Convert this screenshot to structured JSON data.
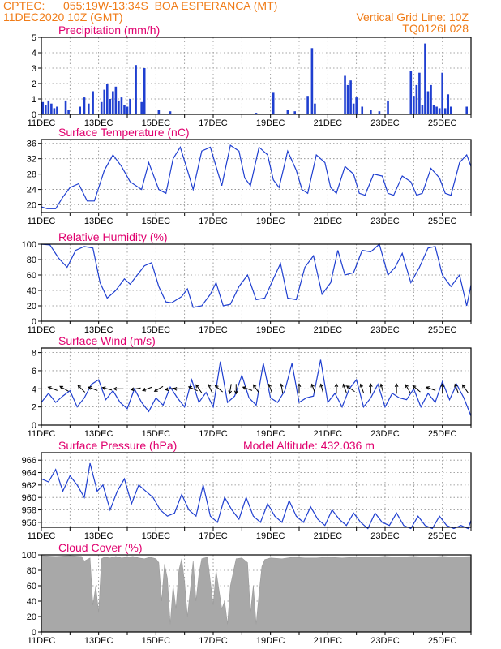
{
  "header": {
    "source": "CPTEC:",
    "location": "055:19W-13:34S  BOA ESPERANCA (MT)",
    "datetime": "11DEC2020 10Z (GMT)",
    "vgrid_label": "Vertical Grid Line: 10Z",
    "code": "TQ0126L028"
  },
  "x_ticks": [
    "11DEC",
    "13DEC",
    "15DEC",
    "17DEC",
    "19DEC",
    "21DEC",
    "23DEC",
    "25DEC"
  ],
  "colors": {
    "title": "#e0006e",
    "header": "#f07c18",
    "series": "#1f3fd0",
    "cloud": "#a8a8a8"
  },
  "chart_data": [
    {
      "id": "precip",
      "type": "bar",
      "title": "Precipitation (mm/h)",
      "xlabel": "",
      "ylabel": "",
      "x_range": [
        0,
        15
      ],
      "ylim": [
        0,
        5
      ],
      "yticks": [
        0,
        1,
        2,
        3,
        4,
        5
      ],
      "x": [
        0.05,
        0.15,
        0.25,
        0.35,
        0.45,
        0.55,
        0.85,
        0.95,
        1.35,
        1.5,
        1.65,
        1.8,
        2.1,
        2.2,
        2.3,
        2.4,
        2.5,
        2.6,
        2.7,
        2.8,
        2.9,
        3.0,
        3.1,
        3.3,
        3.5,
        3.6,
        4.1,
        4.5,
        7.5,
        8.1,
        8.6,
        8.85,
        9.3,
        9.45,
        9.55,
        10.6,
        10.7,
        10.8,
        10.9,
        11.0,
        11.2,
        11.5,
        11.8,
        12.1,
        12.9,
        13.0,
        13.1,
        13.2,
        13.3,
        13.4,
        13.5,
        13.6,
        13.7,
        13.8,
        13.9,
        14.0,
        14.1,
        14.2,
        14.3,
        14.85
      ],
      "values": [
        0.8,
        0.6,
        0.9,
        0.7,
        0.4,
        0.5,
        0.9,
        0.3,
        0.5,
        1.1,
        0.7,
        1.5,
        0.8,
        1.6,
        2.0,
        1.0,
        1.5,
        1.8,
        0.9,
        1.1,
        0.6,
        0.5,
        1.0,
        3.2,
        0.8,
        3.0,
        0.3,
        0.2,
        0.1,
        1.4,
        0.3,
        0.2,
        1.2,
        4.3,
        0.7,
        2.5,
        1.9,
        2.2,
        0.7,
        1.1,
        0.5,
        0.3,
        0.2,
        0.9,
        2.8,
        1.2,
        1.9,
        2.7,
        0.6,
        4.6,
        1.5,
        1.9,
        0.6,
        0.5,
        0.4,
        2.7,
        0.4,
        1.3,
        0.5,
        0.5
      ]
    },
    {
      "id": "temp",
      "type": "line",
      "title": "Surface Temperature (nC)",
      "xlabel": "",
      "ylabel": "",
      "x_range": [
        0,
        15
      ],
      "ylim": [
        18,
        37
      ],
      "yticks": [
        20,
        24,
        28,
        32,
        36
      ],
      "x": [
        0,
        0.2,
        0.5,
        0.75,
        1.0,
        1.3,
        1.6,
        1.85,
        2.2,
        2.5,
        2.8,
        3.1,
        3.5,
        3.75,
        4.1,
        4.35,
        4.6,
        4.85,
        5.1,
        5.3,
        5.6,
        5.9,
        6.1,
        6.3,
        6.6,
        6.9,
        7.1,
        7.3,
        7.6,
        7.9,
        8.1,
        8.3,
        8.6,
        8.9,
        9.1,
        9.3,
        9.6,
        9.9,
        10.1,
        10.3,
        10.6,
        10.9,
        11.1,
        11.3,
        11.6,
        11.9,
        12.1,
        12.3,
        12.6,
        12.9,
        13.1,
        13.3,
        13.6,
        13.9,
        14.1,
        14.3,
        14.6,
        14.85,
        15.0
      ],
      "values": [
        19.5,
        19,
        19,
        22,
        24.5,
        25.5,
        21,
        21,
        29,
        33,
        30,
        26,
        24,
        31,
        24,
        23,
        32,
        35,
        29,
        24,
        34,
        35,
        30,
        25,
        35.5,
        34,
        27,
        25,
        35,
        33,
        26.5,
        24.5,
        34,
        29,
        24,
        23,
        33,
        31,
        24.5,
        23,
        30,
        28,
        23,
        22.5,
        28,
        27.5,
        23,
        22.5,
        27.5,
        26,
        22.5,
        23,
        29.5,
        27,
        23,
        22.5,
        31,
        33,
        30
      ]
    },
    {
      "id": "rh",
      "type": "line",
      "title": "Relative Humidity (%)",
      "xlabel": "",
      "ylabel": "",
      "x_range": [
        0,
        15
      ],
      "ylim": [
        0,
        100
      ],
      "yticks": [
        0,
        20,
        40,
        60,
        80,
        100
      ],
      "x": [
        0,
        0.3,
        0.6,
        0.9,
        1.2,
        1.5,
        1.8,
        2.05,
        2.3,
        2.6,
        2.9,
        3.1,
        3.35,
        3.6,
        3.85,
        4.1,
        4.35,
        4.55,
        4.9,
        5.1,
        5.3,
        5.6,
        5.9,
        6.1,
        6.35,
        6.6,
        6.9,
        7.2,
        7.5,
        7.8,
        8.1,
        8.35,
        8.6,
        8.9,
        9.2,
        9.5,
        9.8,
        10.1,
        10.35,
        10.6,
        10.9,
        11.2,
        11.5,
        11.8,
        12.1,
        12.35,
        12.6,
        12.9,
        13.2,
        13.5,
        13.75,
        14.0,
        14.3,
        14.6,
        14.85,
        15.0
      ],
      "values": [
        100,
        99,
        82,
        70,
        92,
        97,
        95,
        50,
        30,
        40,
        55,
        48,
        60,
        72,
        76,
        45,
        25,
        24,
        32,
        42,
        18,
        20,
        35,
        50,
        20,
        22,
        45,
        60,
        28,
        30,
        55,
        75,
        30,
        28,
        70,
        85,
        35,
        50,
        92,
        60,
        63,
        92,
        90,
        100,
        60,
        70,
        88,
        50,
        70,
        95,
        97,
        60,
        45,
        60,
        20,
        47
      ]
    },
    {
      "id": "wind",
      "type": "line",
      "title": "Surface Wind (m/s)",
      "xlabel": "",
      "ylabel": "",
      "x_range": [
        0,
        15
      ],
      "ylim": [
        0,
        8.5
      ],
      "yticks": [
        0,
        2,
        4,
        6,
        8
      ],
      "x": [
        0,
        0.25,
        0.5,
        0.75,
        1.0,
        1.25,
        1.5,
        1.75,
        2.0,
        2.25,
        2.5,
        2.75,
        3.0,
        3.25,
        3.5,
        3.75,
        4.0,
        4.25,
        4.5,
        4.75,
        5.0,
        5.25,
        5.5,
        5.75,
        6.0,
        6.25,
        6.5,
        6.75,
        7.0,
        7.25,
        7.5,
        7.75,
        8.0,
        8.25,
        8.5,
        8.75,
        9.0,
        9.25,
        9.5,
        9.75,
        10.0,
        10.25,
        10.5,
        10.75,
        11.0,
        11.25,
        11.5,
        11.75,
        12.0,
        12.25,
        12.5,
        12.75,
        13.0,
        13.25,
        13.5,
        13.75,
        14.0,
        14.25,
        14.5,
        14.75,
        15.0
      ],
      "values": [
        2.5,
        3.5,
        2.5,
        3.2,
        3.8,
        2.0,
        3.0,
        4.5,
        5.0,
        2.8,
        3.8,
        2.5,
        1.8,
        4.0,
        2.5,
        1.5,
        3.0,
        2.2,
        4.2,
        3.0,
        2.0,
        5.0,
        2.5,
        3.6,
        2.0,
        7.0,
        2.5,
        3.2,
        5.5,
        3.0,
        2.2,
        6.8,
        3.0,
        2.5,
        3.8,
        6.8,
        2.5,
        3.0,
        3.2,
        7.2,
        2.5,
        3.5,
        2.0,
        4.0,
        5.0,
        2.0,
        3.0,
        4.5,
        2.0,
        3.5,
        3.0,
        2.8,
        4.0,
        2.0,
        3.5,
        2.5,
        4.8,
        2.8,
        4.5,
        3.0,
        1.0
      ],
      "arrows_x": [
        0.4,
        0.8,
        1.4,
        1.8,
        2.3,
        2.7,
        3.3,
        3.7,
        4.1,
        4.5,
        4.8,
        5.3,
        5.5,
        5.9,
        6.2,
        6.6,
        6.8,
        7.2,
        7.5,
        8.0,
        8.4,
        9.0,
        9.5,
        9.8,
        10.3,
        10.6,
        10.8,
        11.2,
        11.5,
        11.9,
        12.4,
        12.8,
        13.1,
        13.6,
        14.0,
        14.5,
        14.8
      ],
      "arrows_angle": [
        200,
        210,
        225,
        200,
        195,
        180,
        170,
        160,
        150,
        170,
        180,
        205,
        235,
        245,
        220,
        100,
        90,
        200,
        235,
        250,
        260,
        270,
        250,
        255,
        270,
        250,
        215,
        250,
        270,
        255,
        270,
        240,
        220,
        200,
        270,
        250,
        235
      ]
    },
    {
      "id": "pres",
      "type": "line",
      "title": "Surface Pressure (hPa)",
      "subtitle": "Model Altitude: 432.036 m",
      "xlabel": "",
      "ylabel": "",
      "x_range": [
        0,
        15
      ],
      "ylim": [
        955.2,
        967.2
      ],
      "yticks": [
        956,
        958,
        960,
        962,
        964,
        966
      ],
      "x": [
        0,
        0.25,
        0.5,
        0.75,
        1.0,
        1.25,
        1.5,
        1.7,
        1.95,
        2.15,
        2.4,
        2.65,
        2.9,
        3.15,
        3.4,
        3.65,
        3.9,
        4.15,
        4.4,
        4.65,
        4.9,
        5.15,
        5.4,
        5.65,
        5.9,
        6.15,
        6.4,
        6.65,
        6.9,
        7.15,
        7.4,
        7.65,
        7.9,
        8.15,
        8.4,
        8.65,
        8.9,
        9.15,
        9.4,
        9.65,
        9.9,
        10.15,
        10.4,
        10.65,
        10.9,
        11.15,
        11.4,
        11.65,
        11.9,
        12.15,
        12.4,
        12.65,
        12.9,
        13.15,
        13.4,
        13.65,
        13.9,
        14.15,
        14.4,
        14.65,
        14.9,
        15.0
      ],
      "values": [
        963,
        962.5,
        964.5,
        961,
        963.5,
        962,
        960,
        965.5,
        961,
        962,
        958,
        961,
        963,
        959,
        962,
        961,
        960,
        958,
        957,
        957.5,
        960.5,
        958,
        957,
        962,
        957,
        956,
        960,
        958,
        956.5,
        960,
        957,
        956,
        959,
        957,
        956,
        959.5,
        957,
        956,
        958.5,
        956.5,
        955.5,
        958,
        956.5,
        955.5,
        957.5,
        956,
        955,
        957.5,
        956,
        955.5,
        957.5,
        955.5,
        955,
        957,
        955.5,
        955,
        957,
        955.5,
        955,
        955.5,
        955,
        956.3
      ]
    },
    {
      "id": "cloud",
      "type": "area",
      "title": "Cloud Cover (%)",
      "xlabel": "",
      "ylabel": "",
      "x_range": [
        0,
        15
      ],
      "ylim": [
        0,
        100
      ],
      "yticks": [
        0,
        20,
        40,
        60,
        80,
        100
      ],
      "x": [
        0,
        0.5,
        1.0,
        1.4,
        1.5,
        1.7,
        1.8,
        1.9,
        2.0,
        2.1,
        2.2,
        2.4,
        2.6,
        2.8,
        3.0,
        3.2,
        3.4,
        3.6,
        3.8,
        4.0,
        4.1,
        4.2,
        4.3,
        4.4,
        4.5,
        4.6,
        4.7,
        4.8,
        4.9,
        5.0,
        5.1,
        5.2,
        5.3,
        5.4,
        5.5,
        5.6,
        5.8,
        6.0,
        6.1,
        6.2,
        6.3,
        6.4,
        6.5,
        6.6,
        6.8,
        7.0,
        7.2,
        7.3,
        7.4,
        7.5,
        7.6,
        7.7,
        7.8,
        8.0,
        8.4,
        8.8,
        9.2,
        9.6,
        10.0,
        10.5,
        11.0,
        11.5,
        12.0,
        12.5,
        13.0,
        13.5,
        14.0,
        14.5,
        15.0
      ],
      "values": [
        99,
        98,
        99,
        98,
        92,
        96,
        35,
        60,
        25,
        95,
        97,
        96,
        98,
        96,
        97,
        98,
        96,
        95,
        97,
        95,
        90,
        40,
        88,
        70,
        10,
        60,
        30,
        80,
        95,
        65,
        20,
        55,
        92,
        40,
        75,
        95,
        97,
        35,
        80,
        55,
        30,
        40,
        10,
        60,
        95,
        96,
        90,
        25,
        60,
        10,
        50,
        85,
        94,
        96,
        95,
        97,
        96,
        96,
        97,
        96,
        97,
        97,
        98,
        97,
        98,
        97,
        98,
        97,
        98
      ]
    }
  ]
}
